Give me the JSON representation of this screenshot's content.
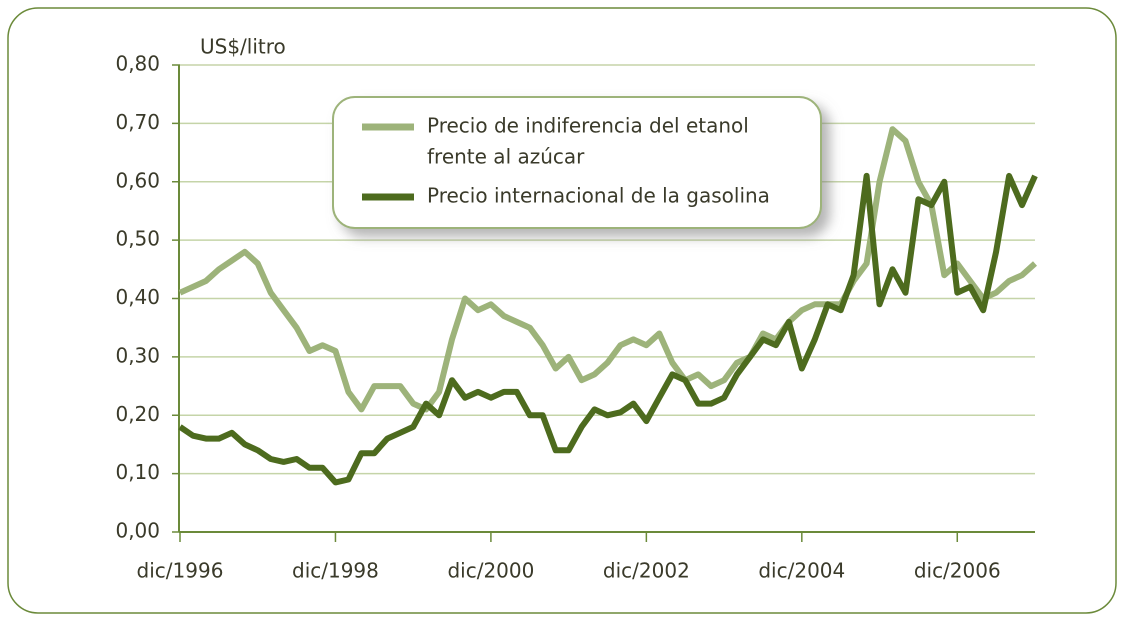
{
  "chart_data": {
    "type": "line",
    "y_label": "US$/litro",
    "categories": [
      "dic/1996",
      null,
      null,
      null,
      null,
      null,
      null,
      null,
      null,
      null,
      null,
      null,
      "dic/1998",
      null,
      null,
      null,
      null,
      null,
      null,
      null,
      null,
      null,
      null,
      null,
      "dic/2000",
      null,
      null,
      null,
      null,
      null,
      null,
      null,
      null,
      null,
      null,
      null,
      "dic/2002",
      null,
      null,
      null,
      null,
      null,
      null,
      null,
      null,
      null,
      null,
      null,
      "dic/2004",
      null,
      null,
      null,
      null,
      null,
      null,
      null,
      null,
      null,
      null,
      null,
      "dic/2006",
      null,
      null,
      null,
      null,
      null,
      null
    ],
    "series": [
      {
        "name": "Precio de indiferencia del etanol frente al azúcar",
        "name_lines": [
          "Precio de indiferencia del etanol",
          "frente al azúcar"
        ],
        "color": "#9db37a",
        "values": [
          0.41,
          0.42,
          0.43,
          0.45,
          0.465,
          0.48,
          0.46,
          0.41,
          0.38,
          0.35,
          0.31,
          0.32,
          0.31,
          0.24,
          0.21,
          0.25,
          0.25,
          0.25,
          0.22,
          0.21,
          0.24,
          0.33,
          0.4,
          0.38,
          0.39,
          0.37,
          0.36,
          0.35,
          0.32,
          0.28,
          0.3,
          0.26,
          0.27,
          0.29,
          0.32,
          0.33,
          0.32,
          0.34,
          0.29,
          0.26,
          0.27,
          0.25,
          0.26,
          0.29,
          0.3,
          0.34,
          0.33,
          0.36,
          0.38,
          0.39,
          0.39,
          0.39,
          0.43,
          0.46,
          0.6,
          0.69,
          0.67,
          0.6,
          0.56,
          0.44,
          0.46,
          0.43,
          0.4,
          0.41,
          0.43,
          0.44,
          0.46
        ]
      },
      {
        "name": "Precio internacional de la gasolina",
        "name_lines": [
          "Precio internacional de la gasolina"
        ],
        "color": "#4d6b1e",
        "values": [
          0.18,
          0.165,
          0.16,
          0.16,
          0.17,
          0.15,
          0.14,
          0.125,
          0.12,
          0.125,
          0.11,
          0.11,
          0.085,
          0.09,
          0.135,
          0.135,
          0.16,
          0.17,
          0.18,
          0.22,
          0.2,
          0.26,
          0.23,
          0.24,
          0.23,
          0.24,
          0.24,
          0.2,
          0.2,
          0.14,
          0.14,
          0.18,
          0.21,
          0.2,
          0.205,
          0.22,
          0.19,
          0.23,
          0.27,
          0.26,
          0.22,
          0.22,
          0.23,
          0.27,
          0.3,
          0.33,
          0.32,
          0.36,
          0.28,
          0.33,
          0.39,
          0.38,
          0.44,
          0.61,
          0.39,
          0.45,
          0.41,
          0.57,
          0.56,
          0.6,
          0.41,
          0.42,
          0.38,
          0.48,
          0.61,
          0.56,
          0.61
        ]
      }
    ],
    "ylim": [
      0,
      0.8
    ],
    "yticks": [
      {
        "value": 0,
        "label": "0,00"
      },
      {
        "value": 0.1,
        "label": "0,10"
      },
      {
        "value": 0.2,
        "label": "0,20"
      },
      {
        "value": 0.3,
        "label": "0,30"
      },
      {
        "value": 0.4,
        "label": "0,40"
      },
      {
        "value": 0.5,
        "label": "0,50"
      },
      {
        "value": 0.6,
        "label": "0,60"
      },
      {
        "value": 0.7,
        "label": "0,70"
      },
      {
        "value": 0.8,
        "label": "0,80"
      }
    ],
    "grid": true
  }
}
